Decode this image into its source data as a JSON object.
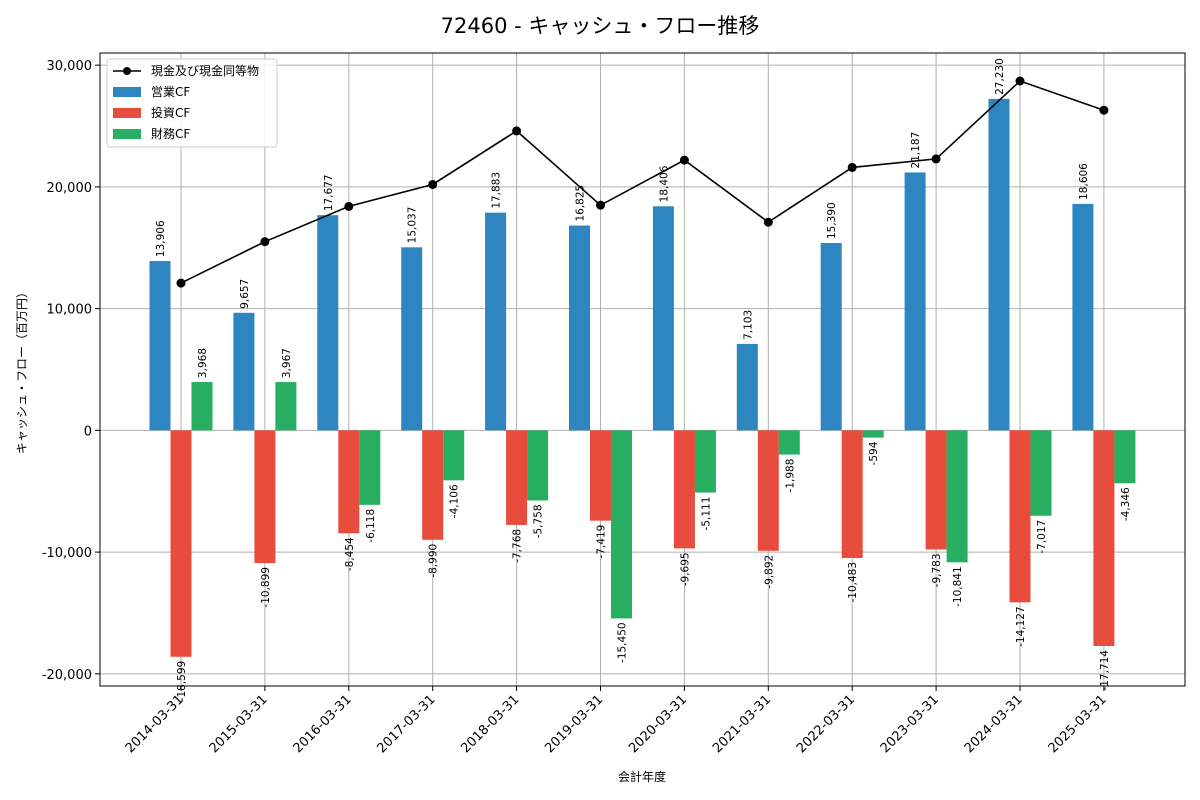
{
  "chart_data": {
    "type": "bar",
    "title": "72460 - キャッシュ・フロー推移",
    "xlabel": "会計年度",
    "ylabel": "キャッシュ・フロー（百万円）",
    "ylim": [
      -21000,
      31000
    ],
    "yticks": [
      -20000,
      -10000,
      0,
      10000,
      20000,
      30000
    ],
    "ytick_labels": [
      "-20,000",
      "-10,000",
      "0",
      "10,000",
      "20,000",
      "30,000"
    ],
    "grid": true,
    "legend_position": "top-left",
    "categories": [
      "2014-03-31",
      "2015-03-31",
      "2016-03-31",
      "2017-03-31",
      "2018-03-31",
      "2019-03-31",
      "2020-03-31",
      "2021-03-31",
      "2022-03-31",
      "2023-03-31",
      "2024-03-31",
      "2025-03-31"
    ],
    "series": [
      {
        "name": "営業CF",
        "kind": "bar",
        "color": "#2e86c1",
        "values": [
          13906,
          9657,
          17677,
          15037,
          17883,
          16825,
          18406,
          7103,
          15390,
          21187,
          27230,
          18606
        ],
        "labels": [
          "13,906",
          "9,657",
          "17,677",
          "15,037",
          "17,883",
          "16,825",
          "18,406",
          "7,103",
          "15,390",
          "21,187",
          "27,230",
          "18,606"
        ]
      },
      {
        "name": "投資CF",
        "kind": "bar",
        "color": "#e74c3c",
        "values": [
          -18599,
          -10899,
          -8454,
          -8990,
          -7768,
          -7419,
          -9695,
          -9892,
          -10483,
          -9783,
          -14127,
          -17714
        ],
        "labels": [
          "-18,599",
          "-10,899",
          "-8,454",
          "-8,990",
          "-7,768",
          "-7,419",
          "-9,695",
          "-9,892",
          "-10,483",
          "-9,783",
          "-14,127",
          "-17,714"
        ]
      },
      {
        "name": "財務CF",
        "kind": "bar",
        "color": "#27ae60",
        "values": [
          3968,
          3967,
          -6118,
          -4106,
          -5758,
          -15450,
          -5111,
          -1988,
          -594,
          -10841,
          -7017,
          -4346
        ],
        "labels": [
          "3,968",
          "3,967",
          "-6,118",
          "-4,106",
          "-5,758",
          "-15,450",
          "-5,111",
          "-1,988",
          "-594",
          "-10,841",
          "-7,017",
          "-4,346"
        ]
      },
      {
        "name": "現金及び現金同等物",
        "kind": "line",
        "color": "#000000",
        "values": [
          12100,
          15500,
          18400,
          20200,
          24600,
          18500,
          22200,
          17100,
          21600,
          22300,
          28700,
          26300
        ]
      }
    ]
  }
}
